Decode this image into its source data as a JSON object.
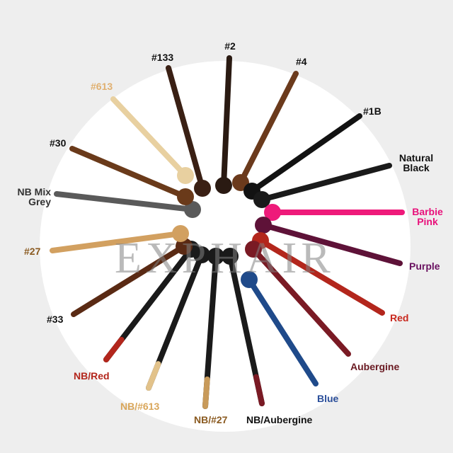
{
  "watermark": "EXPHAIR",
  "colors": {
    "background": "#eeeeee",
    "disc": "#ffffff"
  },
  "dreads": [
    {
      "id": "c2",
      "label": "#2",
      "label_color": "#111111",
      "color": "#2a1a12"
    },
    {
      "id": "c4",
      "label": "#4",
      "label_color": "#111111",
      "color": "#6b3a1c"
    },
    {
      "id": "c1b",
      "label": "#1B",
      "label_color": "#111111",
      "color": "#121212"
    },
    {
      "id": "natural-black",
      "label": "Natural Black",
      "label_color": "#111111",
      "color": "#1a1a1a"
    },
    {
      "id": "barbie-pink",
      "label": "Barbie Pink",
      "label_color": "#e8107a",
      "color": "#ee1a7a"
    },
    {
      "id": "purple",
      "label": "Purple",
      "label_color": "#6a1260",
      "color": "#5e1238"
    },
    {
      "id": "red",
      "label": "Red",
      "label_color": "#c8281e",
      "color": "#b3261c"
    },
    {
      "id": "aubergine",
      "label": "Aubergine",
      "label_color": "#6a1a22",
      "color": "#7a1a24"
    },
    {
      "id": "blue",
      "label": "Blue",
      "label_color": "#2a4e9a",
      "color": "#1f4a8a"
    },
    {
      "id": "nb-aubergine",
      "label": "NB/Aubergine",
      "label_color": "#111111",
      "color": "#1a1a1a",
      "tip": "#7a1a24"
    },
    {
      "id": "nb-27",
      "label": "NB/#27",
      "label_color": "#8a5a20",
      "color": "#1a1a1a",
      "tip": "#c89a5a"
    },
    {
      "id": "nb-613",
      "label": "NB/#613",
      "label_color": "#d9a65a",
      "color": "#1a1a1a",
      "tip": "#e2c28a"
    },
    {
      "id": "nb-red",
      "label": "NB/Red",
      "label_color": "#b3261c",
      "color": "#1a1a1a",
      "tip": "#b3261c"
    },
    {
      "id": "c33",
      "label": "#33",
      "label_color": "#111111",
      "color": "#5a2a14"
    },
    {
      "id": "c27",
      "label": "#27",
      "label_color": "#8a5a20",
      "color": "#d2a060"
    },
    {
      "id": "nb-mix-grey",
      "label": "NB Mix Grey",
      "label_color": "#333333",
      "color": "#5a5a5a"
    },
    {
      "id": "c30",
      "label": "#30",
      "label_color": "#111111",
      "color": "#6a3a1a"
    },
    {
      "id": "c613",
      "label": "#613",
      "label_color": "#e0b070",
      "color": "#e8d0a0"
    },
    {
      "id": "c133",
      "label": "#133",
      "label_color": "#111111",
      "color": "#3a2014"
    }
  ]
}
